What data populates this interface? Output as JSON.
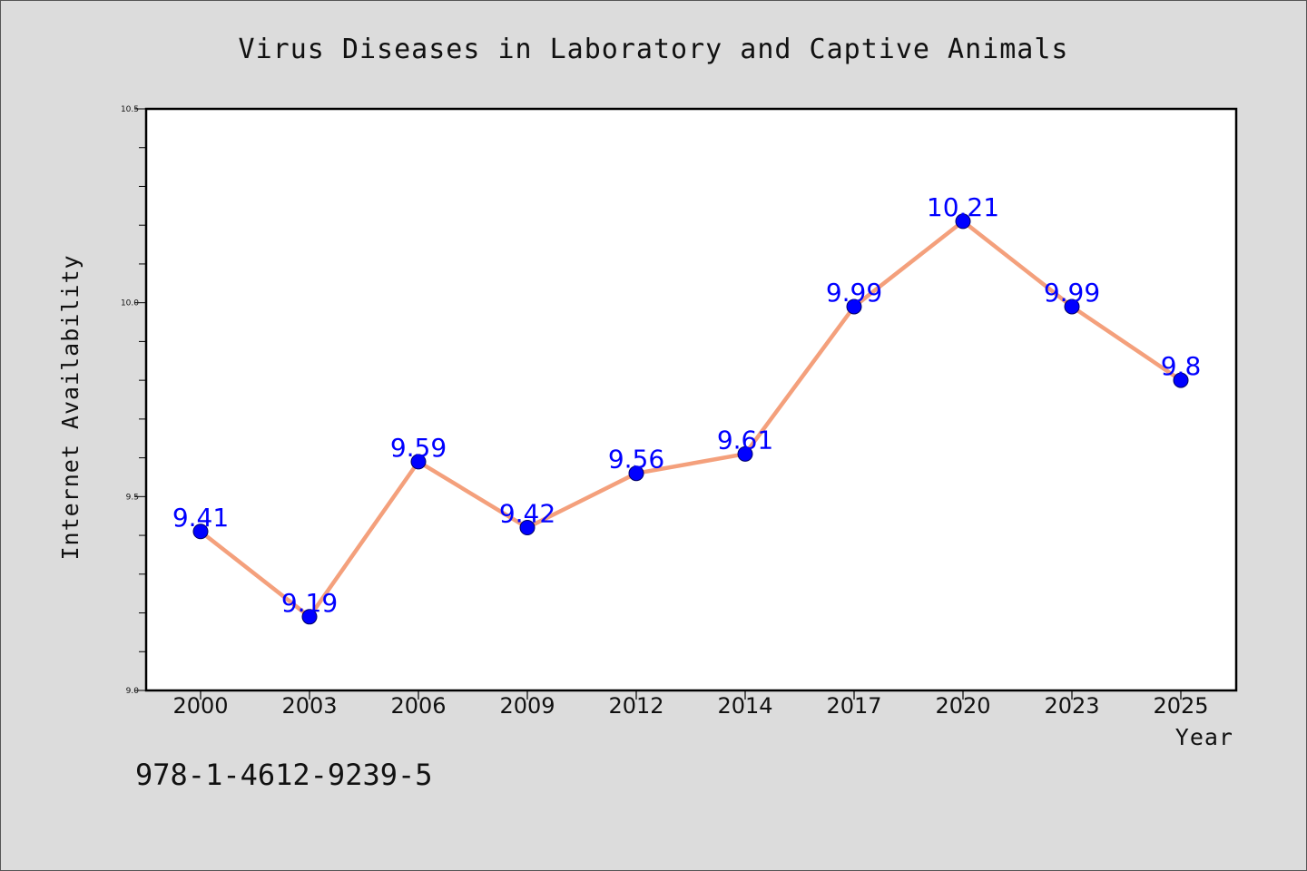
{
  "chart_data": {
    "type": "line",
    "title": "Virus Diseases in Laboratory and Captive Animals",
    "xlabel": "Year",
    "ylabel": "Internet Availability",
    "categories": [
      "2000",
      "2003",
      "2006",
      "2009",
      "2012",
      "2014",
      "2017",
      "2020",
      "2023",
      "2025"
    ],
    "series": [
      {
        "values": [
          9.41,
          9.19,
          9.59,
          9.42,
          9.56,
          9.61,
          9.99,
          10.21,
          9.99,
          9.8
        ],
        "labels": [
          "9.41",
          "9.19",
          "9.59",
          "9.42",
          "9.56",
          "9.61",
          "9.99",
          "10.21",
          "9.99",
          "9.8"
        ],
        "line_color": "#f4a07c",
        "marker_color": "#0000ff"
      }
    ],
    "ylim": [
      9.0,
      10.5
    ],
    "y_major_ticks": [
      "9.0",
      "9.5",
      "10.0",
      "10.5"
    ],
    "y_minor_step": 0.1,
    "grid": false,
    "legend": "none"
  },
  "footer": {
    "isbn": "978-1-4612-9239-5"
  }
}
